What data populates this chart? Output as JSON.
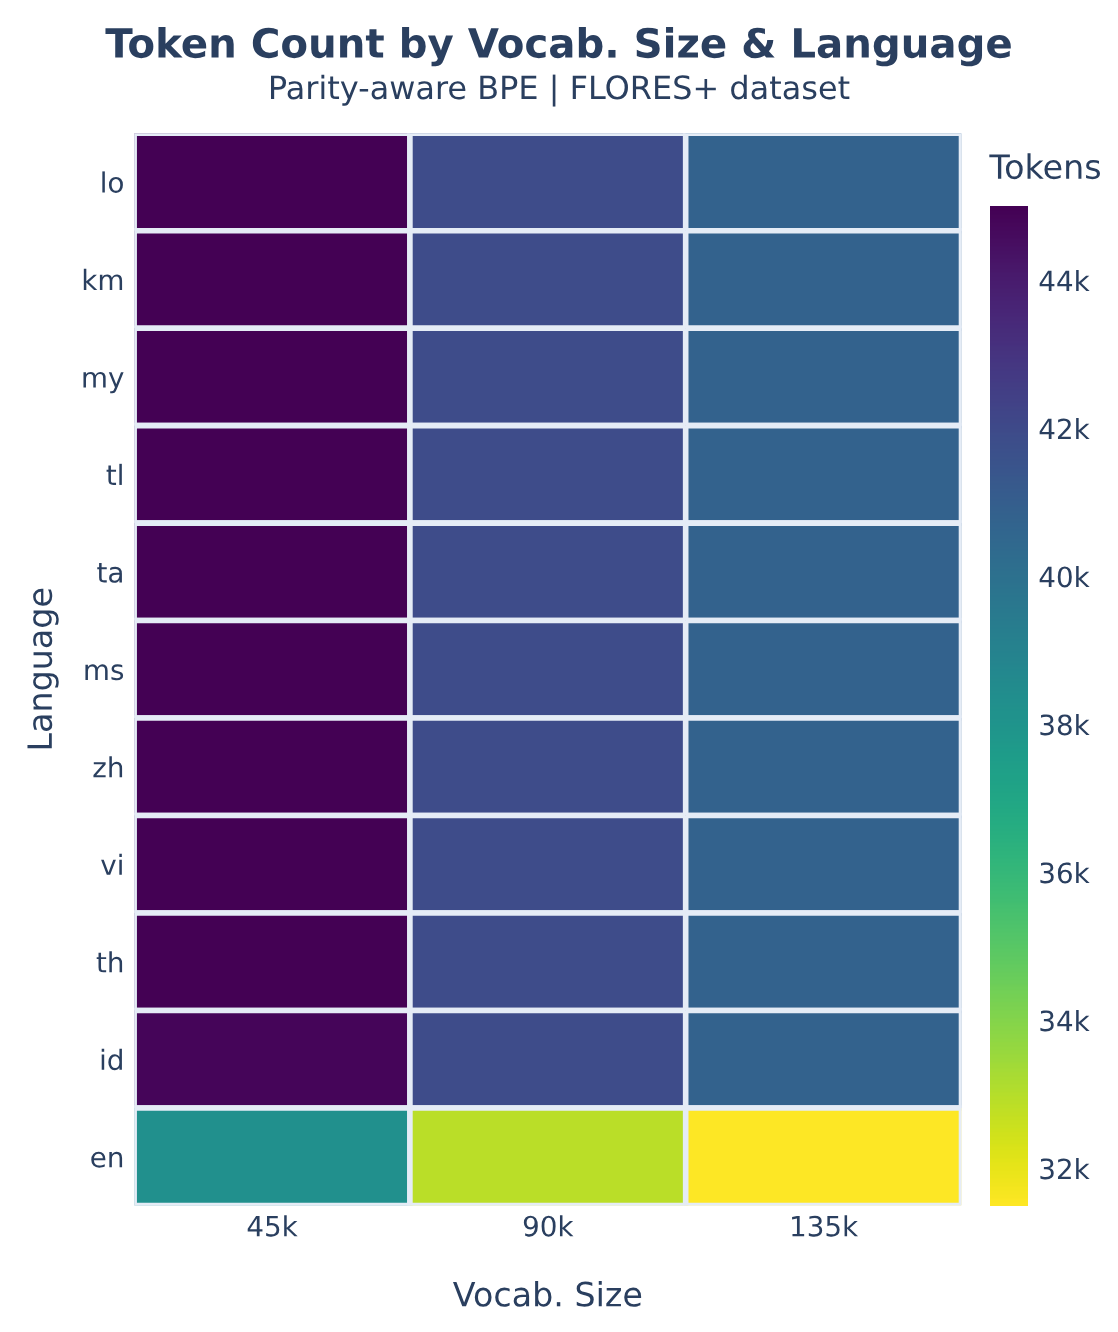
{
  "chart_data": {
    "type": "heatmap",
    "title": "Token Count by Vocab. Size & Language",
    "subtitle": "Parity-aware BPE | FLORES+ dataset",
    "xlabel": "Vocab. Size",
    "ylabel": "Language",
    "clabel": "Tokens",
    "categories": [
      "45k",
      "90k",
      "135k"
    ],
    "y_categories": [
      "lo",
      "km",
      "my",
      "tl",
      "ta",
      "ms",
      "zh",
      "vi",
      "th",
      "id",
      "en"
    ],
    "cells": [
      [
        45.0,
        41.9,
        40.8
      ],
      [
        45.0,
        41.9,
        40.8
      ],
      [
        45.0,
        41.9,
        40.8
      ],
      [
        45.0,
        41.9,
        40.8
      ],
      [
        45.0,
        41.9,
        40.8
      ],
      [
        45.0,
        41.9,
        40.8
      ],
      [
        45.0,
        41.9,
        40.8
      ],
      [
        45.0,
        41.9,
        40.8
      ],
      [
        45.0,
        41.9,
        40.8
      ],
      [
        44.8,
        41.9,
        40.8
      ],
      [
        38.3,
        32.9,
        31.5
      ]
    ],
    "clim": [
      31.5,
      45.0
    ],
    "cticks": [
      {
        "value": 32,
        "label": "32k"
      },
      {
        "value": 34,
        "label": "34k"
      },
      {
        "value": 36,
        "label": "36k"
      },
      {
        "value": 38,
        "label": "38k"
      },
      {
        "value": 40,
        "label": "40k"
      },
      {
        "value": 42,
        "label": "42k"
      },
      {
        "value": 44,
        "label": "44k"
      }
    ]
  }
}
